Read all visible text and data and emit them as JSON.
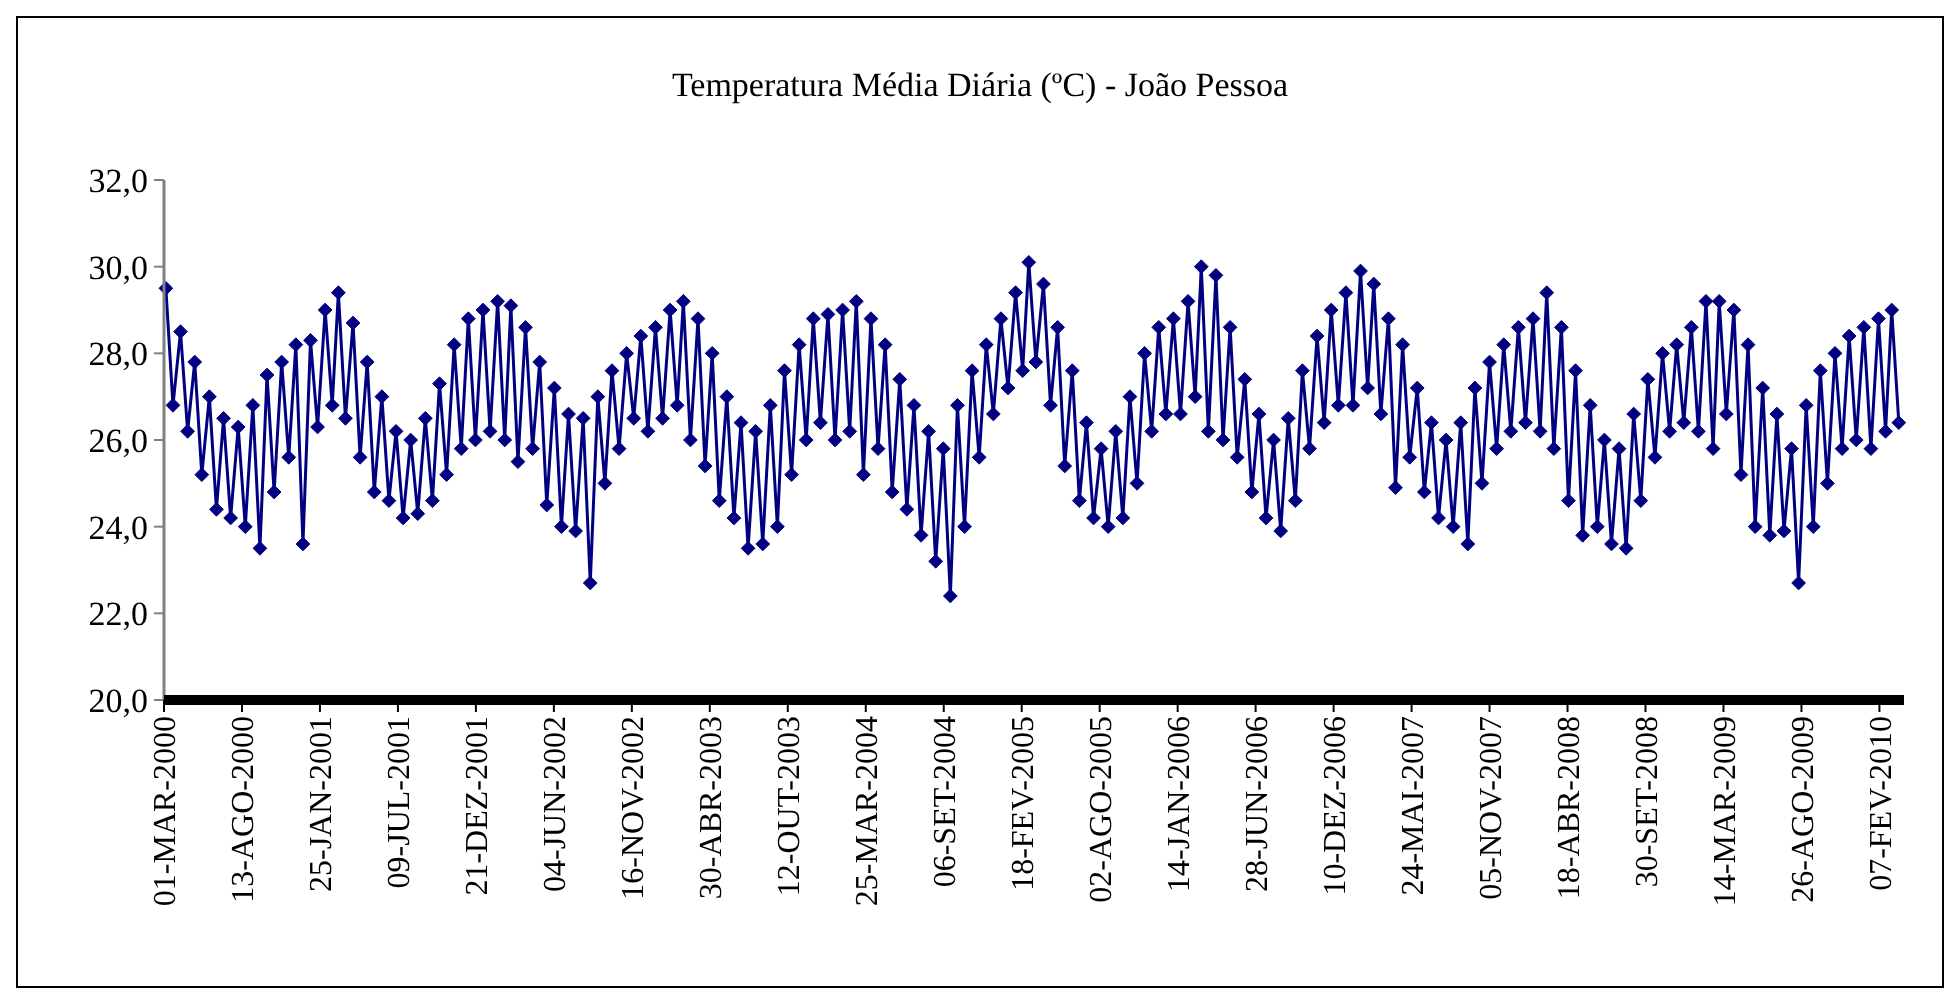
{
  "chart_data": {
    "type": "line",
    "title": "Temperatura Média Diária (ºC) - João Pessoa",
    "marker": "diamond",
    "line_style": "solid",
    "ylim": [
      20,
      32
    ],
    "yticks": [
      {
        "value": 20,
        "label": "20,0"
      },
      {
        "value": 22,
        "label": "22,0"
      },
      {
        "value": 24,
        "label": "24,0"
      },
      {
        "value": 26,
        "label": "26,0"
      },
      {
        "value": 28,
        "label": "28,0"
      },
      {
        "value": 30,
        "label": "30,0"
      },
      {
        "value": 32,
        "label": "32,0"
      }
    ],
    "xlim": [
      "2000-03-01",
      "2010-03-31"
    ],
    "xticks": [
      {
        "value": "2000-03-01",
        "label": "01-MAR-2000"
      },
      {
        "value": "2000-08-13",
        "label": "13-AGO-2000"
      },
      {
        "value": "2001-01-25",
        "label": "25-JAN-2001"
      },
      {
        "value": "2001-07-09",
        "label": "09-JUL-2001"
      },
      {
        "value": "2001-12-21",
        "label": "21-DEZ-2001"
      },
      {
        "value": "2002-06-04",
        "label": "04-JUN-2002"
      },
      {
        "value": "2002-11-16",
        "label": "16-NOV-2002"
      },
      {
        "value": "2003-04-30",
        "label": "30-ABR-2003"
      },
      {
        "value": "2003-10-12",
        "label": "12-OUT-2003"
      },
      {
        "value": "2004-03-25",
        "label": "25-MAR-2004"
      },
      {
        "value": "2004-09-06",
        "label": "06-SET-2004"
      },
      {
        "value": "2005-02-18",
        "label": "18-FEV-2005"
      },
      {
        "value": "2005-08-02",
        "label": "02-AGO-2005"
      },
      {
        "value": "2006-01-14",
        "label": "14-JAN-2006"
      },
      {
        "value": "2006-06-28",
        "label": "28-JUN-2006"
      },
      {
        "value": "2006-12-10",
        "label": "10-DEZ-2006"
      },
      {
        "value": "2007-05-24",
        "label": "24-MAI-2007"
      },
      {
        "value": "2007-11-05",
        "label": "05-NOV-2007"
      },
      {
        "value": "2008-04-18",
        "label": "18-ABR-2008"
      },
      {
        "value": "2008-09-30",
        "label": "30-SET-2008"
      },
      {
        "value": "2009-03-14",
        "label": "14-MAR-2009"
      },
      {
        "value": "2009-08-26",
        "label": "26-AGO-2009"
      },
      {
        "value": "2010-02-07",
        "label": "07-FEV-2010"
      }
    ],
    "series": [
      {
        "color": "#000080",
        "x": [
          "2000-03-05",
          "2000-03-20",
          "2000-04-05",
          "2000-04-20",
          "2000-05-05",
          "2000-05-20",
          "2000-06-05",
          "2000-06-20",
          "2000-07-05",
          "2000-07-20",
          "2000-08-05",
          "2000-08-20",
          "2000-09-05",
          "2000-09-20",
          "2000-10-05",
          "2000-10-20",
          "2000-11-05",
          "2000-11-20",
          "2000-12-05",
          "2000-12-20",
          "2001-01-05",
          "2001-01-20",
          "2001-02-05",
          "2001-02-20",
          "2001-03-05",
          "2001-03-20",
          "2001-04-05",
          "2001-04-20",
          "2001-05-05",
          "2001-05-20",
          "2001-06-05",
          "2001-06-20",
          "2001-07-05",
          "2001-07-20",
          "2001-08-05",
          "2001-08-20",
          "2001-09-05",
          "2001-09-20",
          "2001-10-05",
          "2001-10-20",
          "2001-11-05",
          "2001-11-20",
          "2001-12-05",
          "2001-12-20",
          "2002-01-05",
          "2002-01-20",
          "2002-02-05",
          "2002-02-20",
          "2002-03-05",
          "2002-03-20",
          "2002-04-05",
          "2002-04-20",
          "2002-05-05",
          "2002-05-20",
          "2002-06-05",
          "2002-06-20",
          "2002-07-05",
          "2002-07-20",
          "2002-08-05",
          "2002-08-20",
          "2002-09-05",
          "2002-09-20",
          "2002-10-05",
          "2002-10-20",
          "2002-11-05",
          "2002-11-20",
          "2002-12-05",
          "2002-12-20",
          "2003-01-05",
          "2003-01-20",
          "2003-02-05",
          "2003-02-20",
          "2003-03-05",
          "2003-03-20",
          "2003-04-05",
          "2003-04-20",
          "2003-05-05",
          "2003-05-20",
          "2003-06-05",
          "2003-06-20",
          "2003-07-05",
          "2003-07-20",
          "2003-08-05",
          "2003-08-20",
          "2003-09-05",
          "2003-09-20",
          "2003-10-05",
          "2003-10-20",
          "2003-11-05",
          "2003-11-20",
          "2003-12-05",
          "2003-12-20",
          "2004-01-05",
          "2004-01-20",
          "2004-02-05",
          "2004-02-20",
          "2004-03-05",
          "2004-03-20",
          "2004-04-05",
          "2004-04-20",
          "2004-05-05",
          "2004-05-20",
          "2004-06-05",
          "2004-06-20",
          "2004-07-05",
          "2004-07-20",
          "2004-08-05",
          "2004-08-20",
          "2004-09-05",
          "2004-09-20",
          "2004-10-05",
          "2004-10-20",
          "2004-11-05",
          "2004-11-20",
          "2004-12-05",
          "2004-12-20",
          "2005-01-05",
          "2005-01-20",
          "2005-02-05",
          "2005-02-20",
          "2005-03-05",
          "2005-03-20",
          "2005-04-05",
          "2005-04-20",
          "2005-05-05",
          "2005-05-20",
          "2005-06-05",
          "2005-06-20",
          "2005-07-05",
          "2005-07-20",
          "2005-08-05",
          "2005-08-20",
          "2005-09-05",
          "2005-09-20",
          "2005-10-05",
          "2005-10-20",
          "2005-11-05",
          "2005-11-20",
          "2005-12-05",
          "2005-12-20",
          "2006-01-05",
          "2006-01-20",
          "2006-02-05",
          "2006-02-20",
          "2006-03-05",
          "2006-03-20",
          "2006-04-05",
          "2006-04-20",
          "2006-05-05",
          "2006-05-20",
          "2006-06-05",
          "2006-06-20",
          "2006-07-05",
          "2006-07-20",
          "2006-08-05",
          "2006-08-20",
          "2006-09-05",
          "2006-09-20",
          "2006-10-05",
          "2006-10-20",
          "2006-11-05",
          "2006-11-20",
          "2006-12-05",
          "2006-12-20",
          "2007-01-05",
          "2007-01-20",
          "2007-02-05",
          "2007-02-20",
          "2007-03-05",
          "2007-03-20",
          "2007-04-05",
          "2007-04-20",
          "2007-05-05",
          "2007-05-20",
          "2007-06-05",
          "2007-06-20",
          "2007-07-05",
          "2007-07-20",
          "2007-08-05",
          "2007-08-20",
          "2007-09-05",
          "2007-09-20",
          "2007-10-05",
          "2007-10-20",
          "2007-11-05",
          "2007-11-20",
          "2007-12-05",
          "2007-12-20",
          "2008-01-05",
          "2008-01-20",
          "2008-02-05",
          "2008-02-20",
          "2008-03-05",
          "2008-03-20",
          "2008-04-05",
          "2008-04-20",
          "2008-05-05",
          "2008-05-20",
          "2008-06-05",
          "2008-06-20",
          "2008-07-05",
          "2008-07-20",
          "2008-08-05",
          "2008-08-20",
          "2008-09-05",
          "2008-09-20",
          "2008-10-05",
          "2008-10-20",
          "2008-11-05",
          "2008-11-20",
          "2008-12-05",
          "2008-12-20",
          "2009-01-05",
          "2009-01-20",
          "2009-02-05",
          "2009-02-20",
          "2009-03-05",
          "2009-03-20",
          "2009-04-05",
          "2009-04-20",
          "2009-05-05",
          "2009-05-20",
          "2009-06-05",
          "2009-06-20",
          "2009-07-05",
          "2009-07-20",
          "2009-08-05",
          "2009-08-20",
          "2009-09-05",
          "2009-09-20",
          "2009-10-05",
          "2009-10-20",
          "2009-11-05",
          "2009-11-20",
          "2009-12-05",
          "2009-12-20",
          "2010-01-05",
          "2010-01-20",
          "2010-02-05",
          "2010-02-20",
          "2010-03-05",
          "2010-03-20"
        ],
        "values": [
          29.5,
          26.8,
          28.5,
          26.2,
          27.8,
          25.2,
          27.0,
          24.4,
          26.5,
          24.2,
          26.3,
          24.0,
          26.8,
          23.5,
          27.5,
          24.8,
          27.8,
          25.6,
          28.2,
          23.6,
          28.3,
          26.3,
          29.0,
          26.8,
          29.4,
          26.5,
          28.7,
          25.6,
          27.8,
          24.8,
          27.0,
          24.6,
          26.2,
          24.2,
          26.0,
          24.3,
          26.5,
          24.6,
          27.3,
          25.2,
          28.2,
          25.8,
          28.8,
          26.0,
          29.0,
          26.2,
          29.2,
          26.0,
          29.1,
          25.5,
          28.6,
          25.8,
          27.8,
          24.5,
          27.2,
          24.0,
          26.6,
          23.9,
          26.5,
          22.7,
          27.0,
          25.0,
          27.6,
          25.8,
          28.0,
          26.5,
          28.4,
          26.2,
          28.6,
          26.5,
          29.0,
          26.8,
          29.2,
          26.0,
          28.8,
          25.4,
          28.0,
          24.6,
          27.0,
          24.2,
          26.4,
          23.5,
          26.2,
          23.6,
          26.8,
          24.0,
          27.6,
          25.2,
          28.2,
          26.0,
          28.8,
          26.4,
          28.9,
          26.0,
          29.0,
          26.2,
          29.2,
          25.2,
          28.8,
          25.8,
          28.2,
          24.8,
          27.4,
          24.4,
          26.8,
          23.8,
          26.2,
          23.2,
          25.8,
          22.4,
          26.8,
          24.0,
          27.6,
          25.6,
          28.2,
          26.6,
          28.8,
          27.2,
          29.4,
          27.6,
          30.1,
          27.8,
          29.6,
          26.8,
          28.6,
          25.4,
          27.6,
          24.6,
          26.4,
          24.2,
          25.8,
          24.0,
          26.2,
          24.2,
          27.0,
          25.0,
          28.0,
          26.2,
          28.6,
          26.6,
          28.8,
          26.6,
          29.2,
          27.0,
          30.0,
          26.2,
          29.8,
          26.0,
          28.6,
          25.6,
          27.4,
          24.8,
          26.6,
          24.2,
          26.0,
          23.9,
          26.5,
          24.6,
          27.6,
          25.8,
          28.4,
          26.4,
          29.0,
          26.8,
          29.4,
          26.8,
          29.9,
          27.2,
          29.6,
          26.6,
          28.8,
          24.9,
          28.2,
          25.6,
          27.2,
          24.8,
          26.4,
          24.2,
          26.0,
          24.0,
          26.4,
          23.6,
          27.2,
          25.0,
          27.8,
          25.8,
          28.2,
          26.2,
          28.6,
          26.4,
          28.8,
          26.2,
          29.4,
          25.8,
          28.6,
          24.6,
          27.6,
          23.8,
          26.8,
          24.0,
          26.0,
          23.6,
          25.8,
          23.5,
          26.6,
          24.6,
          27.4,
          25.6,
          28.0,
          26.2,
          28.2,
          26.4,
          28.6,
          26.2,
          29.2,
          25.8,
          29.2,
          26.6,
          29.0,
          25.2,
          28.2,
          24.0,
          27.2,
          23.8,
          26.6,
          23.9,
          25.8,
          22.7,
          26.8,
          24.0,
          27.6,
          25.0,
          28.0,
          25.8,
          28.4,
          26.0,
          28.6,
          25.8,
          28.8,
          26.2,
          29.0,
          26.4
        ]
      }
    ]
  }
}
